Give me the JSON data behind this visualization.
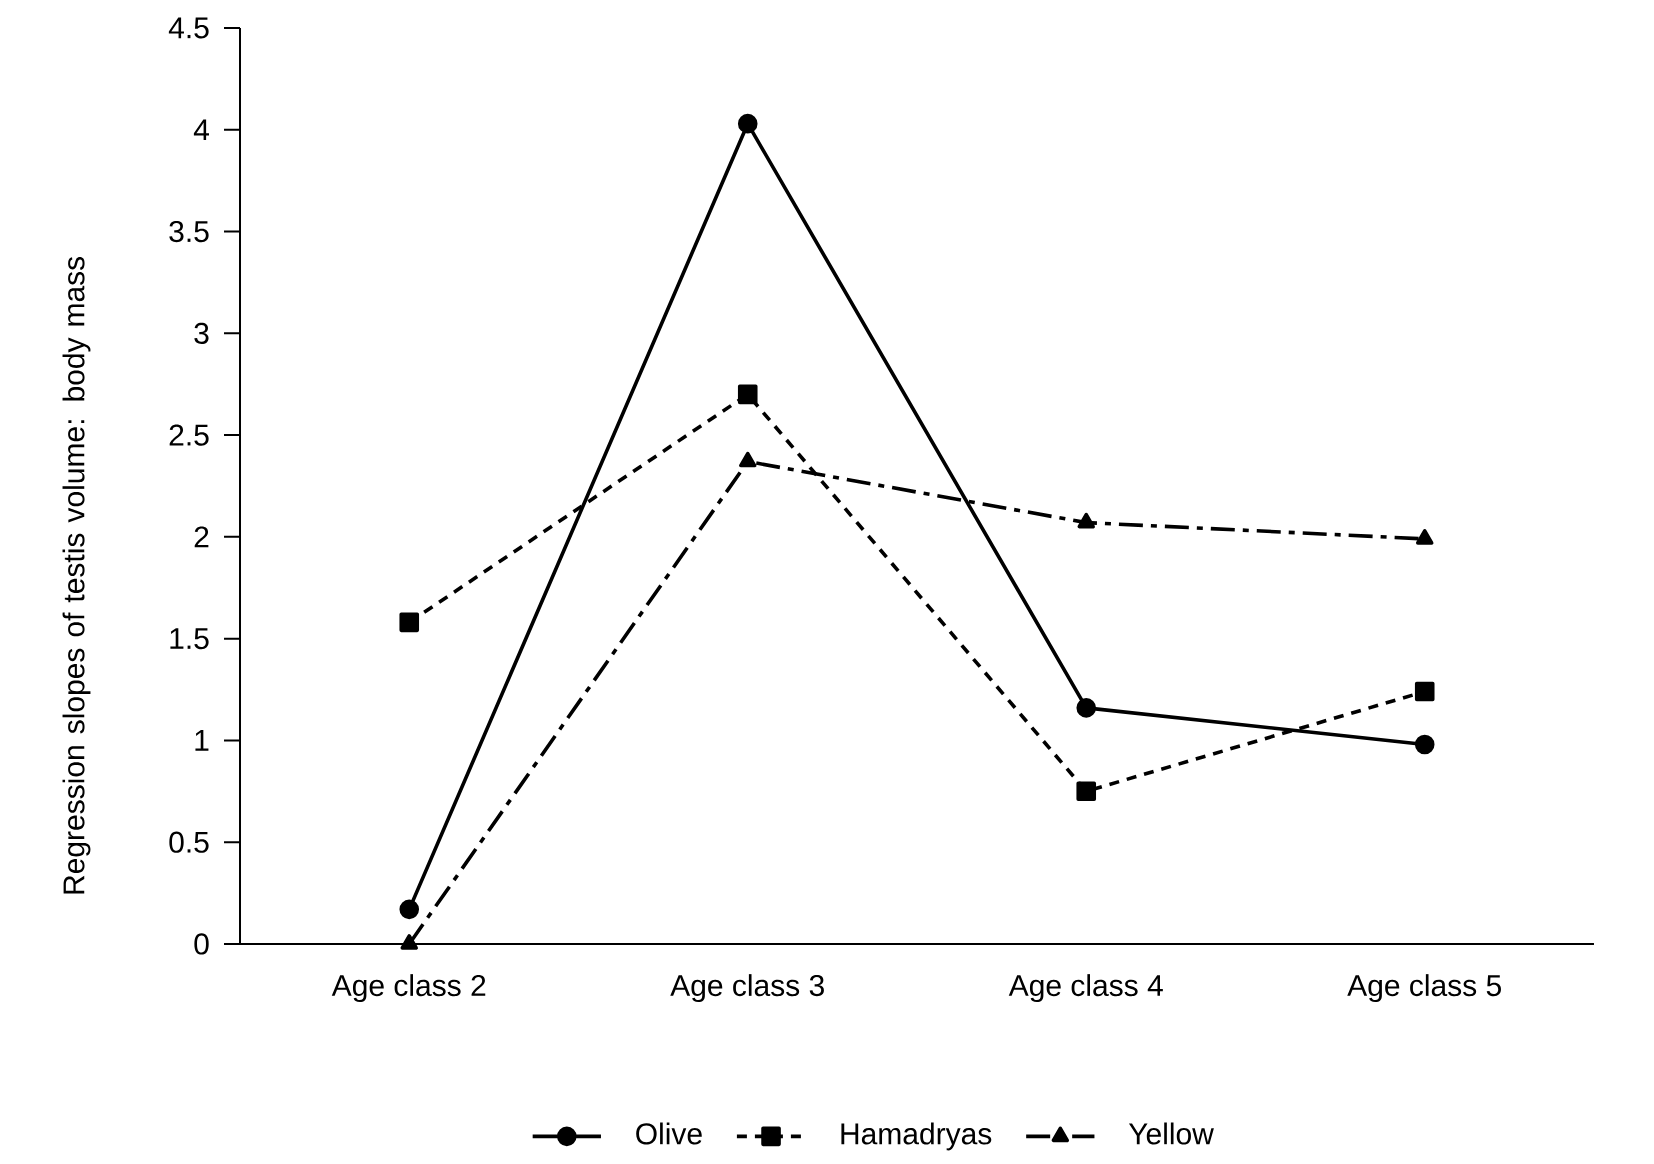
{
  "chart_data": {
    "type": "line",
    "ylabel": "Regression slopes of testis volume: body mass",
    "categories": [
      "Age class 2",
      "Age class 3",
      "Age class 4",
      "Age class 5"
    ],
    "series": [
      {
        "name": "Olive",
        "color": "#000000",
        "values": [
          0.17,
          4.03,
          1.16,
          0.98
        ],
        "marker": "circle",
        "line_style": "solid"
      },
      {
        "name": "Hamadryas",
        "color": "#000000",
        "values": [
          1.58,
          2.7,
          0.75,
          1.24
        ],
        "marker": "square",
        "line_style": "dashed"
      },
      {
        "name": "Yellow",
        "color": "#000000",
        "values": [
          0.0,
          2.37,
          2.07,
          1.99
        ],
        "marker": "triangle",
        "line_style": "dashdot"
      }
    ],
    "ylim": [
      0,
      4.5
    ],
    "yticks": [
      0,
      0.5,
      1,
      1.5,
      2,
      2.5,
      3,
      3.5,
      4,
      4.5
    ],
    "grid": false,
    "legend": "bottom"
  }
}
